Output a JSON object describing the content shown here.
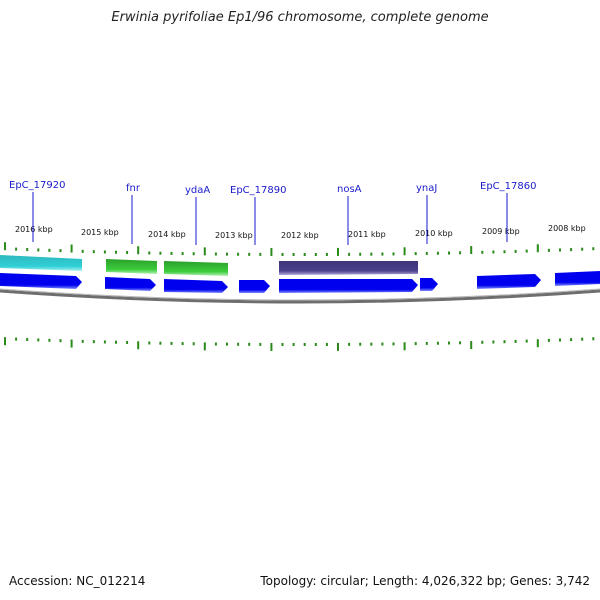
{
  "title": "Erwinia pyrifoliae Ep1/96 chromosome, complete genome",
  "footer": {
    "accession": "Accession: NC_012214",
    "stats": "Topology: circular; Length: 4,026,322 bp; Genes: 3,742"
  },
  "colors": {
    "cds": "#0000ee",
    "cds_light": "#4f60ff",
    "backbone": "#777777",
    "tick": "#2a8a1a",
    "gene_label": "#1a1acc",
    "feature_cyan": "#2cc6cc",
    "feature_green": "#3cc83c",
    "feature_purple": "#4a3f8c"
  },
  "chart_data": {
    "type": "genome_map",
    "kbp_labels": [
      {
        "kbp": 2016,
        "label": "2016 kbp"
      },
      {
        "kbp": 2015,
        "label": "2015 kbp"
      },
      {
        "kbp": 2014,
        "label": "2014 kbp"
      },
      {
        "kbp": 2013,
        "label": "2013 kbp"
      },
      {
        "kbp": 2012,
        "label": "2012 kbp"
      },
      {
        "kbp": 2011,
        "label": "2011 kbp"
      },
      {
        "kbp": 2010,
        "label": "2010 kbp"
      },
      {
        "kbp": 2009,
        "label": "2009 kbp"
      },
      {
        "kbp": 2008,
        "label": "2008 kbp"
      }
    ],
    "gene_labels": [
      {
        "name": "EpC_17920"
      },
      {
        "name": "fnr"
      },
      {
        "name": "ydaA"
      },
      {
        "name": "EpC_17890"
      },
      {
        "name": "nosA"
      },
      {
        "name": "ynaJ"
      },
      {
        "name": "EpC_17860"
      }
    ]
  }
}
